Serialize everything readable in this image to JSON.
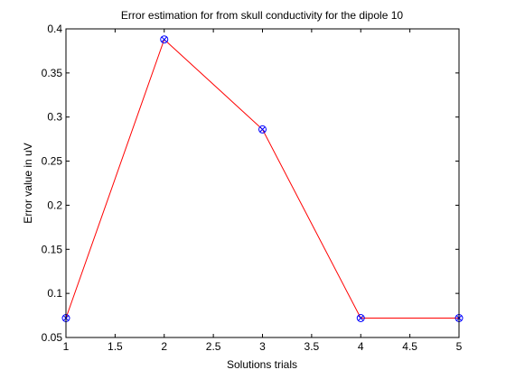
{
  "chart_data": {
    "type": "line",
    "title": "Error estimation for from skull conductivity for the dipole 10",
    "xlabel": "Solutions trials",
    "ylabel": "Error value in uV",
    "xlim": [
      1,
      5
    ],
    "ylim": [
      0.05,
      0.4
    ],
    "x_ticks": [
      "1",
      "1.5",
      "2",
      "2.5",
      "3",
      "3.5",
      "4",
      "4.5",
      "5"
    ],
    "y_ticks": [
      "0.05",
      "0.1",
      "0.15",
      "0.2",
      "0.25",
      "0.3",
      "0.35",
      "0.4"
    ],
    "grid": false,
    "series": [
      {
        "x": [
          1,
          2,
          3,
          4,
          5
        ],
        "values": [
          0.072,
          0.388,
          0.286,
          0.072,
          0.072
        ],
        "line_color": "#ff0000",
        "marker": "circle-x",
        "marker_color": "#0000ff"
      }
    ]
  }
}
